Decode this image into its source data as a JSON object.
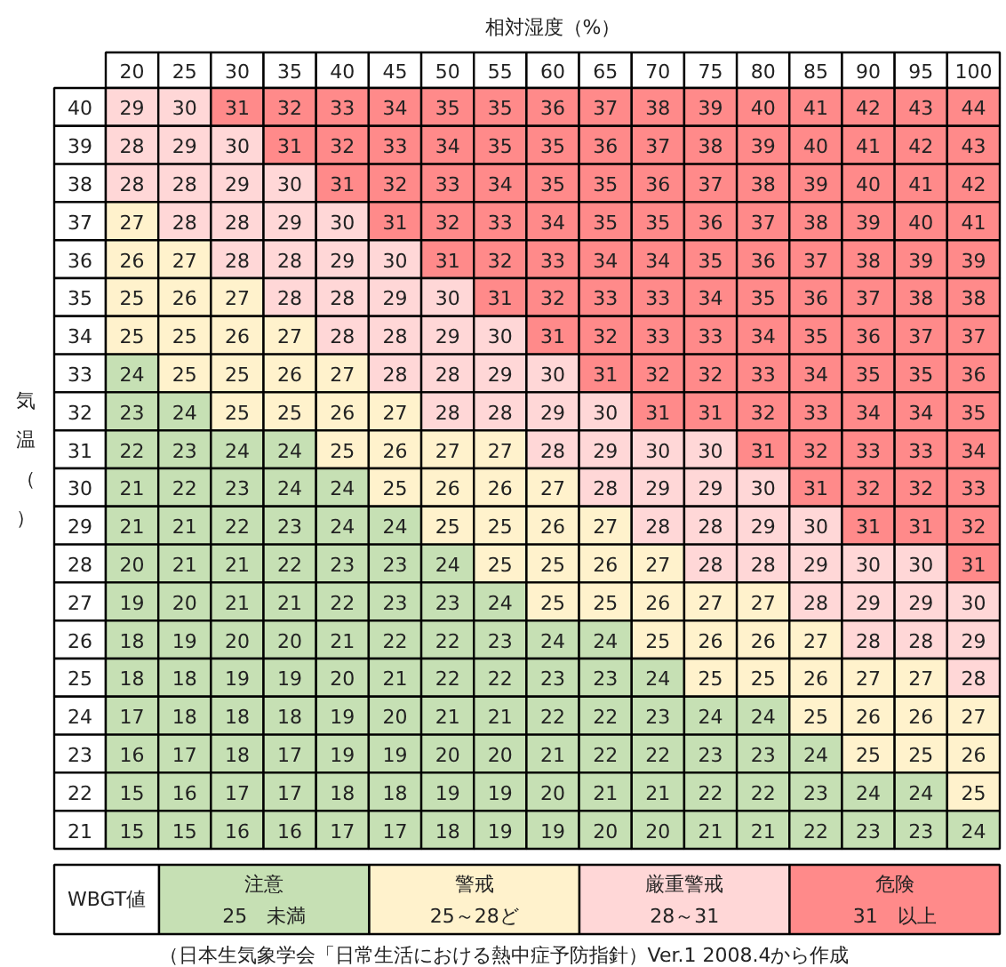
{
  "chart_data": [
    {
      "type": "heatmap",
      "xlabel": "相対湿度（%）",
      "ylabel": "気温（）",
      "categories": [
        "20",
        "25",
        "30",
        "35",
        "40",
        "45",
        "50",
        "55",
        "60",
        "65",
        "70",
        "75",
        "80",
        "85",
        "90",
        "95",
        "100"
      ],
      "y_categories": [
        "40",
        "39",
        "38",
        "37",
        "36",
        "35",
        "34",
        "33",
        "32",
        "31",
        "30",
        "29",
        "28",
        "27",
        "26",
        "25",
        "24",
        "23",
        "22",
        "21"
      ],
      "data_labels": true,
      "cells": [
        [
          29,
          30,
          31,
          32,
          33,
          34,
          35,
          35,
          36,
          37,
          38,
          39,
          40,
          41,
          42,
          43,
          44
        ],
        [
          28,
          29,
          30,
          31,
          32,
          33,
          34,
          35,
          35,
          36,
          37,
          38,
          39,
          40,
          41,
          42,
          43
        ],
        [
          28,
          28,
          29,
          30,
          31,
          32,
          33,
          34,
          35,
          35,
          36,
          37,
          38,
          39,
          40,
          41,
          42
        ],
        [
          27,
          28,
          28,
          29,
          30,
          31,
          32,
          33,
          34,
          35,
          35,
          36,
          37,
          38,
          39,
          40,
          41
        ],
        [
          26,
          27,
          28,
          28,
          29,
          30,
          31,
          32,
          33,
          34,
          34,
          35,
          36,
          37,
          38,
          39,
          39
        ],
        [
          25,
          26,
          27,
          28,
          28,
          29,
          30,
          31,
          32,
          33,
          33,
          34,
          35,
          36,
          37,
          38,
          38
        ],
        [
          25,
          25,
          26,
          27,
          28,
          28,
          29,
          30,
          31,
          32,
          33,
          33,
          34,
          35,
          36,
          37,
          37
        ],
        [
          24,
          25,
          25,
          26,
          27,
          28,
          28,
          29,
          30,
          31,
          32,
          32,
          33,
          34,
          35,
          35,
          36
        ],
        [
          23,
          24,
          25,
          25,
          26,
          27,
          28,
          28,
          29,
          30,
          31,
          31,
          32,
          33,
          34,
          34,
          35
        ],
        [
          22,
          23,
          24,
          24,
          25,
          26,
          27,
          27,
          28,
          29,
          30,
          30,
          31,
          32,
          33,
          33,
          34
        ],
        [
          21,
          22,
          23,
          24,
          24,
          25,
          26,
          26,
          27,
          28,
          29,
          29,
          30,
          31,
          32,
          32,
          33
        ],
        [
          21,
          21,
          22,
          23,
          24,
          24,
          25,
          25,
          26,
          27,
          28,
          28,
          29,
          30,
          31,
          31,
          32
        ],
        [
          20,
          21,
          21,
          22,
          23,
          23,
          24,
          25,
          25,
          26,
          27,
          28,
          28,
          29,
          30,
          30,
          31
        ],
        [
          19,
          20,
          21,
          21,
          22,
          23,
          23,
          24,
          25,
          25,
          26,
          27,
          27,
          28,
          29,
          29,
          30
        ],
        [
          18,
          19,
          20,
          20,
          21,
          22,
          22,
          23,
          24,
          24,
          25,
          26,
          26,
          27,
          28,
          28,
          29
        ],
        [
          18,
          18,
          19,
          19,
          20,
          21,
          22,
          22,
          23,
          23,
          24,
          25,
          25,
          26,
          27,
          27,
          28
        ],
        [
          17,
          18,
          18,
          18,
          19,
          20,
          21,
          21,
          22,
          22,
          23,
          24,
          24,
          25,
          26,
          26,
          27
        ],
        [
          16,
          17,
          18,
          17,
          19,
          19,
          20,
          20,
          21,
          22,
          22,
          23,
          23,
          24,
          25,
          25,
          26
        ],
        [
          15,
          16,
          17,
          17,
          18,
          18,
          19,
          19,
          20,
          21,
          21,
          22,
          22,
          23,
          24,
          24,
          25
        ],
        [
          15,
          15,
          16,
          16,
          17,
          17,
          18,
          19,
          19,
          20,
          20,
          21,
          21,
          22,
          23,
          23,
          24
        ]
      ],
      "colors": [
        [
          "#ffd7d7",
          "#ffd7d7",
          "#ff8a8a",
          "#ff8a8a",
          "#ff8a8a",
          "#ff8a8a",
          "#ff8a8a",
          "#ff8a8a",
          "#ff8a8a",
          "#ff8a8a",
          "#ff8a8a",
          "#ff8a8a",
          "#ff8a8a",
          "#ff8a8a",
          "#ff8a8a",
          "#ff8a8a",
          "#ff8a8a"
        ],
        [
          "#ffd7d7",
          "#ffd7d7",
          "#ffd7d7",
          "#ff8a8a",
          "#ff8a8a",
          "#ff8a8a",
          "#ff8a8a",
          "#ff8a8a",
          "#ff8a8a",
          "#ff8a8a",
          "#ff8a8a",
          "#ff8a8a",
          "#ff8a8a",
          "#ff8a8a",
          "#ff8a8a",
          "#ff8a8a",
          "#ff8a8a"
        ],
        [
          "#ffd7d7",
          "#ffd7d7",
          "#ffd7d7",
          "#ffd7d7",
          "#ff8a8a",
          "#ff8a8a",
          "#ff8a8a",
          "#ff8a8a",
          "#ff8a8a",
          "#ff8a8a",
          "#ff8a8a",
          "#ff8a8a",
          "#ff8a8a",
          "#ff8a8a",
          "#ff8a8a",
          "#ff8a8a",
          "#ff8a8a"
        ],
        [
          "#fff2cc",
          "#ffd7d7",
          "#ffd7d7",
          "#ffd7d7",
          "#ffd7d7",
          "#ff8a8a",
          "#ff8a8a",
          "#ff8a8a",
          "#ff8a8a",
          "#ff8a8a",
          "#ff8a8a",
          "#ff8a8a",
          "#ff8a8a",
          "#ff8a8a",
          "#ff8a8a",
          "#ff8a8a",
          "#ff8a8a"
        ],
        [
          "#fff2cc",
          "#fff2cc",
          "#ffd7d7",
          "#ffd7d7",
          "#ffd7d7",
          "#ffd7d7",
          "#ff8a8a",
          "#ff8a8a",
          "#ff8a8a",
          "#ff8a8a",
          "#ff8a8a",
          "#ff8a8a",
          "#ff8a8a",
          "#ff8a8a",
          "#ff8a8a",
          "#ff8a8a",
          "#ff8a8a"
        ],
        [
          "#fff2cc",
          "#fff2cc",
          "#fff2cc",
          "#ffd7d7",
          "#ffd7d7",
          "#ffd7d7",
          "#ffd7d7",
          "#ff8a8a",
          "#ff8a8a",
          "#ff8a8a",
          "#ff8a8a",
          "#ff8a8a",
          "#ff8a8a",
          "#ff8a8a",
          "#ff8a8a",
          "#ff8a8a",
          "#ff8a8a"
        ],
        [
          "#fff2cc",
          "#fff2cc",
          "#fff2cc",
          "#fff2cc",
          "#ffd7d7",
          "#ffd7d7",
          "#ffd7d7",
          "#ffd7d7",
          "#ff8a8a",
          "#ff8a8a",
          "#ff8a8a",
          "#ff8a8a",
          "#ff8a8a",
          "#ff8a8a",
          "#ff8a8a",
          "#ff8a8a",
          "#ff8a8a"
        ],
        [
          "#c6e0b4",
          "#fff2cc",
          "#fff2cc",
          "#fff2cc",
          "#fff2cc",
          "#ffd7d7",
          "#ffd7d7",
          "#ffd7d7",
          "#ffd7d7",
          "#ff8a8a",
          "#ff8a8a",
          "#ff8a8a",
          "#ff8a8a",
          "#ff8a8a",
          "#ff8a8a",
          "#ff8a8a",
          "#ff8a8a"
        ],
        [
          "#c6e0b4",
          "#c6e0b4",
          "#fff2cc",
          "#fff2cc",
          "#fff2cc",
          "#fff2cc",
          "#ffd7d7",
          "#ffd7d7",
          "#ffd7d7",
          "#ffd7d7",
          "#ff8a8a",
          "#ff8a8a",
          "#ff8a8a",
          "#ff8a8a",
          "#ff8a8a",
          "#ff8a8a",
          "#ff8a8a"
        ],
        [
          "#c6e0b4",
          "#c6e0b4",
          "#c6e0b4",
          "#c6e0b4",
          "#fff2cc",
          "#fff2cc",
          "#fff2cc",
          "#fff2cc",
          "#ffd7d7",
          "#ffd7d7",
          "#ffd7d7",
          "#ffd7d7",
          "#ff8a8a",
          "#ff8a8a",
          "#ff8a8a",
          "#ff8a8a",
          "#ff8a8a"
        ],
        [
          "#c6e0b4",
          "#c6e0b4",
          "#c6e0b4",
          "#c6e0b4",
          "#c6e0b4",
          "#fff2cc",
          "#fff2cc",
          "#fff2cc",
          "#fff2cc",
          "#ffd7d7",
          "#ffd7d7",
          "#ffd7d7",
          "#ffd7d7",
          "#ff8a8a",
          "#ff8a8a",
          "#ff8a8a",
          "#ff8a8a"
        ],
        [
          "#c6e0b4",
          "#c6e0b4",
          "#c6e0b4",
          "#c6e0b4",
          "#c6e0b4",
          "#c6e0b4",
          "#fff2cc",
          "#fff2cc",
          "#fff2cc",
          "#fff2cc",
          "#ffd7d7",
          "#ffd7d7",
          "#ffd7d7",
          "#ffd7d7",
          "#ff8a8a",
          "#ff8a8a",
          "#ff8a8a"
        ],
        [
          "#c6e0b4",
          "#c6e0b4",
          "#c6e0b4",
          "#c6e0b4",
          "#c6e0b4",
          "#c6e0b4",
          "#c6e0b4",
          "#fff2cc",
          "#fff2cc",
          "#fff2cc",
          "#fff2cc",
          "#ffd7d7",
          "#ffd7d7",
          "#ffd7d7",
          "#ffd7d7",
          "#ffd7d7",
          "#ff8a8a"
        ],
        [
          "#c6e0b4",
          "#c6e0b4",
          "#c6e0b4",
          "#c6e0b4",
          "#c6e0b4",
          "#c6e0b4",
          "#c6e0b4",
          "#c6e0b4",
          "#fff2cc",
          "#fff2cc",
          "#fff2cc",
          "#fff2cc",
          "#fff2cc",
          "#ffd7d7",
          "#ffd7d7",
          "#ffd7d7",
          "#ffd7d7"
        ],
        [
          "#c6e0b4",
          "#c6e0b4",
          "#c6e0b4",
          "#c6e0b4",
          "#c6e0b4",
          "#c6e0b4",
          "#c6e0b4",
          "#c6e0b4",
          "#c6e0b4",
          "#c6e0b4",
          "#fff2cc",
          "#fff2cc",
          "#fff2cc",
          "#fff2cc",
          "#ffd7d7",
          "#ffd7d7",
          "#ffd7d7"
        ],
        [
          "#c6e0b4",
          "#c6e0b4",
          "#c6e0b4",
          "#c6e0b4",
          "#c6e0b4",
          "#c6e0b4",
          "#c6e0b4",
          "#c6e0b4",
          "#c6e0b4",
          "#c6e0b4",
          "#c6e0b4",
          "#fff2cc",
          "#fff2cc",
          "#fff2cc",
          "#fff2cc",
          "#fff2cc",
          "#ffd7d7"
        ],
        [
          "#c6e0b4",
          "#c6e0b4",
          "#c6e0b4",
          "#c6e0b4",
          "#c6e0b4",
          "#c6e0b4",
          "#c6e0b4",
          "#c6e0b4",
          "#c6e0b4",
          "#c6e0b4",
          "#c6e0b4",
          "#c6e0b4",
          "#c6e0b4",
          "#fff2cc",
          "#fff2cc",
          "#fff2cc",
          "#fff2cc"
        ],
        [
          "#c6e0b4",
          "#c6e0b4",
          "#c6e0b4",
          "#c6e0b4",
          "#c6e0b4",
          "#c6e0b4",
          "#c6e0b4",
          "#c6e0b4",
          "#c6e0b4",
          "#c6e0b4",
          "#c6e0b4",
          "#c6e0b4",
          "#c6e0b4",
          "#c6e0b4",
          "#fff2cc",
          "#fff2cc",
          "#fff2cc"
        ],
        [
          "#c6e0b4",
          "#c6e0b4",
          "#c6e0b4",
          "#c6e0b4",
          "#c6e0b4",
          "#c6e0b4",
          "#c6e0b4",
          "#c6e0b4",
          "#c6e0b4",
          "#c6e0b4",
          "#c6e0b4",
          "#c6e0b4",
          "#c6e0b4",
          "#c6e0b4",
          "#c6e0b4",
          "#c6e0b4",
          "#fff2cc"
        ],
        [
          "#c6e0b4",
          "#c6e0b4",
          "#c6e0b4",
          "#c6e0b4",
          "#c6e0b4",
          "#c6e0b4",
          "#c6e0b4",
          "#c6e0b4",
          "#c6e0b4",
          "#c6e0b4",
          "#c6e0b4",
          "#c6e0b4",
          "#c6e0b4",
          "#c6e0b4",
          "#c6e0b4",
          "#c6e0b4",
          "#c6e0b4"
        ]
      ]
    },
    {
      "type": "other",
      "title": "WBGT値",
      "categories": [
        "注意",
        "警戒",
        "厳重警戒",
        "危険"
      ],
      "colors": [
        "#c6e0b4",
        "#fff2cc",
        "#ffd7d7",
        "#ff8a8a"
      ],
      "value_labels": [
        "25　未満",
        "25～28ど",
        "28～31",
        "31　以上"
      ],
      "annotations": [
        "（日本生気象学会「日常生活における熱中症予防指針）Ver.1 2008.4から作成"
      ]
    }
  ]
}
